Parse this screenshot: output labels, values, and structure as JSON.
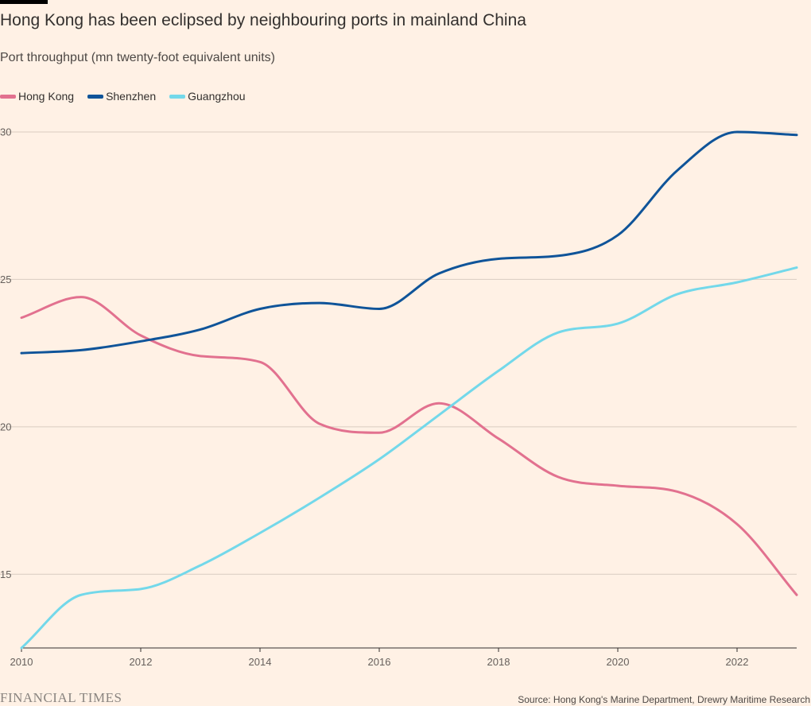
{
  "title": "Hong Kong has been eclipsed by neighbouring ports in mainland China",
  "subtitle": "Port throughput (mn twenty-foot equivalent units)",
  "footer": {
    "brand": "FINANCIAL TIMES",
    "source": "Source: Hong Kong's Marine Department, Drewry Maritime Research"
  },
  "colors": {
    "background": "#fff1e5",
    "gridline": "#d9ccc1",
    "axis": "#33302e",
    "text": "#33302e"
  },
  "chart_data": {
    "type": "line",
    "title": "Hong Kong has been eclipsed by neighbouring ports in mainland China",
    "ylabel": "Port throughput (mn twenty-foot equivalent units)",
    "xlabel": "",
    "xlim": [
      2010,
      2023
    ],
    "ylim": [
      12.5,
      30
    ],
    "x_ticks": [
      2010,
      2012,
      2014,
      2016,
      2018,
      2020,
      2022
    ],
    "x_tick_labels": [
      "2010",
      "2012",
      "2014",
      "2016",
      "2018",
      "2020",
      "2022"
    ],
    "y_ticks": [
      15,
      20,
      25,
      30
    ],
    "y_tick_labels": [
      "15",
      "20",
      "25",
      "30"
    ],
    "grid": true,
    "legend_position": "top-left",
    "x": [
      2010,
      2011,
      2012,
      2013,
      2014,
      2015,
      2016,
      2017,
      2018,
      2019,
      2020,
      2021,
      2022,
      2023
    ],
    "series": [
      {
        "name": "Hong Kong",
        "color": "#e2718f",
        "values": [
          23.7,
          24.4,
          23.1,
          22.4,
          22.2,
          20.1,
          19.8,
          20.8,
          19.6,
          18.3,
          18.0,
          17.8,
          16.7,
          14.3
        ]
      },
      {
        "name": "Shenzhen",
        "color": "#0f5499",
        "values": [
          22.5,
          22.6,
          22.9,
          23.3,
          24.0,
          24.2,
          24.0,
          25.2,
          25.7,
          25.8,
          26.5,
          28.7,
          30.0,
          29.9
        ]
      },
      {
        "name": "Guangzhou",
        "color": "#73d8ea",
        "values": [
          12.5,
          14.3,
          14.5,
          15.3,
          16.4,
          17.6,
          18.9,
          20.4,
          21.9,
          23.2,
          23.5,
          24.5,
          24.9,
          25.4
        ]
      }
    ]
  }
}
